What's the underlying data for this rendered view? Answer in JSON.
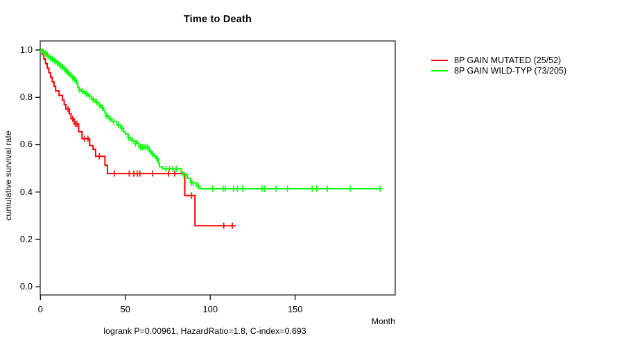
{
  "chart_data": {
    "type": "line",
    "subtype": "kaplan-meier-step-survival",
    "title": "Time to Death",
    "xlabel": "Month",
    "ylabel": "cumulative survival rate",
    "footer": "logrank P=0.00961, HazardRatio=1.8, C-index=0.693",
    "grid": false,
    "legend_position": "right-outside",
    "x_axis": {
      "ticks": [
        0,
        50,
        100,
        150
      ],
      "range": [
        0,
        209
      ]
    },
    "y_axis": {
      "ticks": [
        0,
        0.2,
        0.4,
        0.6,
        0.8,
        1.0
      ],
      "tick_labels": [
        "0.0",
        "0.2",
        "0.4",
        "0.6",
        "0.8",
        "1.0"
      ],
      "range": [
        0,
        1
      ]
    },
    "series": [
      {
        "name": "8P GAIN MUTATED",
        "label": "8P GAIN MUTATED (25/52)",
        "color": "#ff0000",
        "end_month": 115,
        "steps": [
          [
            0,
            1.0
          ],
          [
            1,
            0.981
          ],
          [
            2,
            0.962
          ],
          [
            3,
            0.942
          ],
          [
            4,
            0.923
          ],
          [
            5,
            0.904
          ],
          [
            6,
            0.885
          ],
          [
            7,
            0.865
          ],
          [
            8,
            0.846
          ],
          [
            9,
            0.827
          ],
          [
            11,
            0.808
          ],
          [
            13,
            0.788
          ],
          [
            14,
            0.769
          ],
          [
            15,
            0.75
          ],
          [
            17,
            0.73
          ],
          [
            18,
            0.709
          ],
          [
            20,
            0.688
          ],
          [
            22.5,
            0.655
          ],
          [
            24.5,
            0.625
          ],
          [
            29,
            0.596
          ],
          [
            31,
            0.58
          ],
          [
            32.5,
            0.551
          ],
          [
            38,
            0.513
          ],
          [
            39.5,
            0.478
          ],
          [
            85,
            0.385
          ],
          [
            91,
            0.258
          ]
        ],
        "censors": [
          [
            16.3,
            0.75
          ],
          [
            19,
            0.709
          ],
          [
            20.5,
            0.688
          ],
          [
            21.5,
            0.688
          ],
          [
            26,
            0.625
          ],
          [
            28,
            0.625
          ],
          [
            34.7,
            0.551
          ],
          [
            43.6,
            0.478
          ],
          [
            52.3,
            0.478
          ],
          [
            55,
            0.478
          ],
          [
            57,
            0.478
          ],
          [
            58.6,
            0.478
          ],
          [
            66,
            0.478
          ],
          [
            75.5,
            0.478
          ],
          [
            79,
            0.478
          ],
          [
            89,
            0.385
          ],
          [
            108,
            0.258
          ],
          [
            113,
            0.258
          ]
        ]
      },
      {
        "name": "8P GAIN WILD-TYP",
        "label": "8P GAIN WILD-TYP (73/205)",
        "color": "#00ff00",
        "end_month": 200.8,
        "steps": [
          [
            0,
            1.0
          ],
          [
            1,
            0.995
          ],
          [
            2,
            0.99
          ],
          [
            3,
            0.985
          ],
          [
            4,
            0.98
          ],
          [
            5,
            0.971
          ],
          [
            6,
            0.966
          ],
          [
            7,
            0.961
          ],
          [
            8,
            0.956
          ],
          [
            9,
            0.951
          ],
          [
            10,
            0.946
          ],
          [
            11,
            0.941
          ],
          [
            12,
            0.932
          ],
          [
            13,
            0.927
          ],
          [
            14,
            0.922
          ],
          [
            15,
            0.912
          ],
          [
            16,
            0.907
          ],
          [
            17,
            0.898
          ],
          [
            18,
            0.893
          ],
          [
            19,
            0.883
          ],
          [
            20,
            0.878
          ],
          [
            21,
            0.868
          ],
          [
            21.5,
            0.858
          ],
          [
            22,
            0.843
          ],
          [
            23,
            0.833
          ],
          [
            24,
            0.825
          ],
          [
            26,
            0.815
          ],
          [
            28,
            0.805
          ],
          [
            30,
            0.791
          ],
          [
            32,
            0.781
          ],
          [
            34,
            0.766
          ],
          [
            36,
            0.756
          ],
          [
            37,
            0.746
          ],
          [
            38,
            0.732
          ],
          [
            39,
            0.722
          ],
          [
            40,
            0.717
          ],
          [
            41,
            0.708
          ],
          [
            42,
            0.698
          ],
          [
            45,
            0.683
          ],
          [
            47.5,
            0.669
          ],
          [
            49,
            0.654
          ],
          [
            50,
            0.645
          ],
          [
            51.7,
            0.63
          ],
          [
            53,
            0.62
          ],
          [
            55,
            0.615
          ],
          [
            57,
            0.605
          ],
          [
            58,
            0.59
          ],
          [
            64,
            0.571
          ],
          [
            65.5,
            0.561
          ],
          [
            67,
            0.551
          ],
          [
            68,
            0.542
          ],
          [
            69.5,
            0.522
          ],
          [
            70,
            0.507
          ],
          [
            72,
            0.498
          ],
          [
            83,
            0.483
          ],
          [
            84,
            0.473
          ],
          [
            86.5,
            0.458
          ],
          [
            88.5,
            0.439
          ],
          [
            92,
            0.424
          ],
          [
            94,
            0.414
          ]
        ],
        "censors": [
          [
            1,
            0.995
          ],
          [
            2,
            0.99
          ],
          [
            3,
            0.985
          ],
          [
            4,
            0.98
          ],
          [
            5,
            0.971
          ],
          [
            6,
            0.966
          ],
          [
            7,
            0.961
          ],
          [
            8,
            0.956
          ],
          [
            9,
            0.951
          ],
          [
            10,
            0.946
          ],
          [
            11,
            0.941
          ],
          [
            12,
            0.932
          ],
          [
            13,
            0.927
          ],
          [
            14,
            0.922
          ],
          [
            15,
            0.912
          ],
          [
            16,
            0.907
          ],
          [
            17,
            0.898
          ],
          [
            18,
            0.893
          ],
          [
            19,
            0.883
          ],
          [
            20,
            0.878
          ],
          [
            21,
            0.868
          ],
          [
            23,
            0.833
          ],
          [
            25,
            0.825
          ],
          [
            27,
            0.815
          ],
          [
            29,
            0.805
          ],
          [
            31,
            0.791
          ],
          [
            33,
            0.781
          ],
          [
            35,
            0.766
          ],
          [
            36.5,
            0.756
          ],
          [
            39,
            0.722
          ],
          [
            41,
            0.708
          ],
          [
            43,
            0.698
          ],
          [
            46,
            0.683
          ],
          [
            48,
            0.669
          ],
          [
            52,
            0.63
          ],
          [
            54,
            0.62
          ],
          [
            56,
            0.605
          ],
          [
            59,
            0.59
          ],
          [
            60,
            0.59
          ],
          [
            61,
            0.59
          ],
          [
            62,
            0.59
          ],
          [
            63,
            0.59
          ],
          [
            65,
            0.571
          ],
          [
            66,
            0.561
          ],
          [
            68.5,
            0.542
          ],
          [
            74,
            0.498
          ],
          [
            76,
            0.498
          ],
          [
            78,
            0.498
          ],
          [
            80,
            0.498
          ],
          [
            84.5,
            0.473
          ],
          [
            89,
            0.439
          ],
          [
            90,
            0.439
          ],
          [
            93,
            0.424
          ],
          [
            101.4,
            0.414
          ],
          [
            107.6,
            0.414
          ],
          [
            108.9,
            0.414
          ],
          [
            113.7,
            0.414
          ],
          [
            116,
            0.414
          ],
          [
            119,
            0.414
          ],
          [
            130.5,
            0.414
          ],
          [
            132,
            0.414
          ],
          [
            138.7,
            0.414
          ],
          [
            145.5,
            0.414
          ],
          [
            160,
            0.414
          ],
          [
            162.7,
            0.414
          ],
          [
            169,
            0.414
          ],
          [
            182.4,
            0.414
          ],
          [
            200,
            0.414
          ]
        ]
      }
    ],
    "colors": {
      "border": "#3a3a3a",
      "text": "#000000",
      "background": "#ffffff"
    }
  }
}
